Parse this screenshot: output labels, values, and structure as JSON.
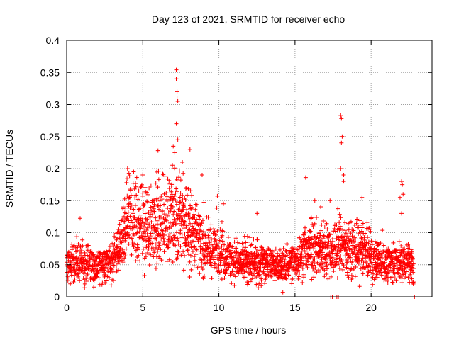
{
  "chart_data": {
    "type": "scatter",
    "title": "Day 123 of 2021, SRMTID for receiver echo",
    "xlabel": "GPS time / hours",
    "ylabel": "SRMTID / TECUs",
    "xlim": [
      0,
      24
    ],
    "ylim": [
      0,
      0.4
    ],
    "xticks": [
      0,
      5,
      10,
      15,
      20
    ],
    "yticks": [
      0,
      0.05,
      0.1,
      0.15,
      0.2,
      0.25,
      0.3,
      0.35,
      0.4
    ],
    "ytick_labels": [
      "0",
      "0.05",
      "0.1",
      "0.15",
      "0.2",
      "0.25",
      "0.3",
      "0.35",
      "0.4"
    ],
    "xtick_labels": [
      "0",
      "5",
      "10",
      "15",
      "20"
    ],
    "grid": true,
    "marker": "+",
    "color": "#ff0000",
    "series": [
      {
        "name": "SRMTID",
        "baseline_profile": [
          [
            0.0,
            0.052
          ],
          [
            1.0,
            0.055
          ],
          [
            2.0,
            0.045
          ],
          [
            3.0,
            0.055
          ],
          [
            3.5,
            0.075
          ],
          [
            4.0,
            0.12
          ],
          [
            4.5,
            0.11
          ],
          [
            5.0,
            0.11
          ],
          [
            5.5,
            0.1
          ],
          [
            6.0,
            0.12
          ],
          [
            6.5,
            0.12
          ],
          [
            7.0,
            0.13
          ],
          [
            7.5,
            0.12
          ],
          [
            8.0,
            0.11
          ],
          [
            8.5,
            0.1
          ],
          [
            9.0,
            0.08
          ],
          [
            9.5,
            0.07
          ],
          [
            10.0,
            0.075
          ],
          [
            10.5,
            0.06
          ],
          [
            11.0,
            0.055
          ],
          [
            12.0,
            0.055
          ],
          [
            13.0,
            0.055
          ],
          [
            14.0,
            0.045
          ],
          [
            14.5,
            0.05
          ],
          [
            15.0,
            0.055
          ],
          [
            15.5,
            0.07
          ],
          [
            16.0,
            0.075
          ],
          [
            17.0,
            0.075
          ],
          [
            17.5,
            0.07
          ],
          [
            18.0,
            0.08
          ],
          [
            18.5,
            0.075
          ],
          [
            19.0,
            0.07
          ],
          [
            19.5,
            0.075
          ],
          [
            20.0,
            0.06
          ],
          [
            21.0,
            0.05
          ],
          [
            22.0,
            0.055
          ],
          [
            22.5,
            0.055
          ],
          [
            22.8,
            0.05
          ]
        ],
        "peaks": [
          {
            "x": 7.2,
            "y": 0.354
          },
          {
            "x": 7.2,
            "y": 0.34
          },
          {
            "x": 7.25,
            "y": 0.32
          },
          {
            "x": 7.25,
            "y": 0.31
          },
          {
            "x": 7.3,
            "y": 0.305
          },
          {
            "x": 7.2,
            "y": 0.27
          },
          {
            "x": 7.3,
            "y": 0.245
          },
          {
            "x": 7.0,
            "y": 0.235
          },
          {
            "x": 7.1,
            "y": 0.225
          },
          {
            "x": 8.1,
            "y": 0.23
          },
          {
            "x": 6.0,
            "y": 0.228
          },
          {
            "x": 4.0,
            "y": 0.2
          },
          {
            "x": 4.4,
            "y": 0.195
          },
          {
            "x": 5.0,
            "y": 0.19
          },
          {
            "x": 7.6,
            "y": 0.21
          },
          {
            "x": 8.9,
            "y": 0.19
          },
          {
            "x": 18.0,
            "y": 0.283
          },
          {
            "x": 18.05,
            "y": 0.278
          },
          {
            "x": 18.1,
            "y": 0.25
          },
          {
            "x": 18.05,
            "y": 0.24
          },
          {
            "x": 18.2,
            "y": 0.19
          },
          {
            "x": 18.2,
            "y": 0.18
          },
          {
            "x": 15.7,
            "y": 0.186
          },
          {
            "x": 22.0,
            "y": 0.18
          },
          {
            "x": 22.05,
            "y": 0.175
          },
          {
            "x": 22.1,
            "y": 0.16
          },
          {
            "x": 21.9,
            "y": 0.155
          },
          {
            "x": 17.3,
            "y": 0.15
          },
          {
            "x": 19.4,
            "y": 0.155
          },
          {
            "x": 9.9,
            "y": 0.157
          },
          {
            "x": 10.3,
            "y": 0.145
          },
          {
            "x": 12.5,
            "y": 0.13
          },
          {
            "x": 16.3,
            "y": 0.15
          },
          {
            "x": 14.2,
            "y": 0.007
          },
          {
            "x": 22.0,
            "y": 0.13
          },
          {
            "x": 18.0,
            "y": 0.2
          }
        ],
        "zero_points": [
          {
            "x": 17.35,
            "y": 0.0
          },
          {
            "x": 17.45,
            "y": 0.0
          },
          {
            "x": 17.75,
            "y": 0.0
          },
          {
            "x": 17.85,
            "y": 0.0
          },
          {
            "x": 22.85,
            "y": 0.0
          }
        ]
      }
    ]
  }
}
